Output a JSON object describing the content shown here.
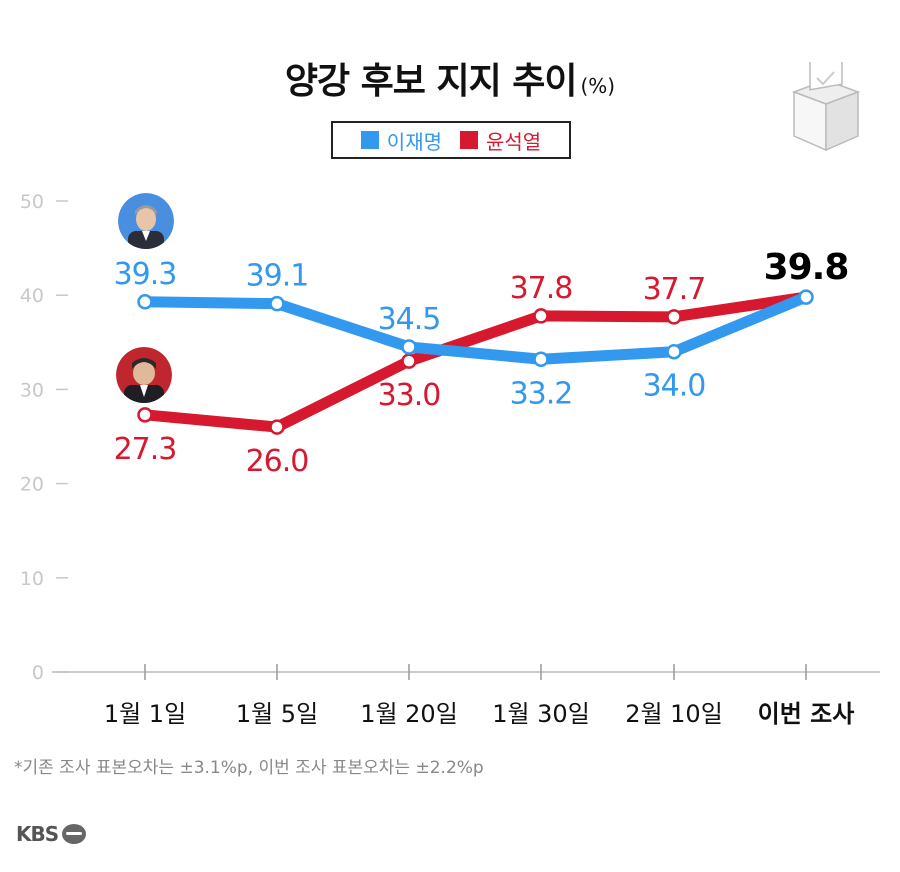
{
  "title": "양강 후보 지지 추이",
  "title_unit": "(%)",
  "footnote": "*기존 조사 표본오차는 ±3.1%p, 이번 조사 표본오차는 ±2.2%p",
  "logo_text": "KBS",
  "colors": {
    "lee": "#3399ee",
    "yoon": "#d6192f",
    "axis": "#cccccc",
    "text": "#111111",
    "accent_last": "#000000"
  },
  "chart_data": {
    "type": "line",
    "categories": [
      "1월 1일",
      "1월 5일",
      "1월 20일",
      "1월 30일",
      "2월 10일",
      "이번 조사"
    ],
    "series": [
      {
        "name": "이재명",
        "values": [
          39.3,
          39.1,
          34.5,
          33.2,
          34.0,
          39.8
        ]
      },
      {
        "name": "윤석열",
        "values": [
          27.3,
          26.0,
          33.0,
          37.8,
          37.7,
          39.8
        ]
      }
    ],
    "data_labels": {
      "이재명": [
        "39.3",
        "39.1",
        "34.5",
        "33.2",
        "34.0",
        "39.8"
      ],
      "윤석열": [
        "27.3",
        "26.0",
        "33.0",
        "37.8",
        "37.7",
        ""
      ]
    },
    "yticks": [
      "0",
      "10",
      "20",
      "30",
      "40",
      "50"
    ],
    "ylim": [
      0,
      50
    ],
    "legend": "top-center",
    "grid": false
  }
}
